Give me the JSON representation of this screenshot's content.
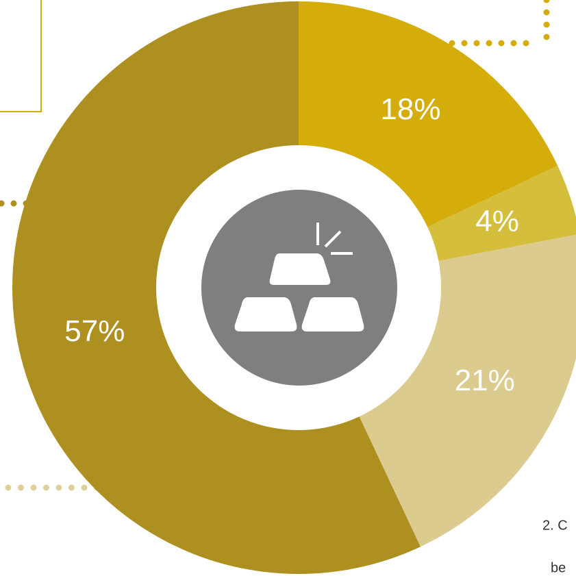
{
  "chart_data": {
    "type": "donut",
    "categories": [
      null,
      null,
      null,
      null
    ],
    "values": [
      18,
      4,
      21,
      57
    ],
    "value_labels": [
      "18%",
      "4%",
      "21%",
      "57%"
    ],
    "colors": [
      "#d4ad0a",
      "#d4be3c",
      "#dccb8e",
      "#ad9020"
    ],
    "annotations": [
      "2. C",
      "be"
    ]
  }
}
